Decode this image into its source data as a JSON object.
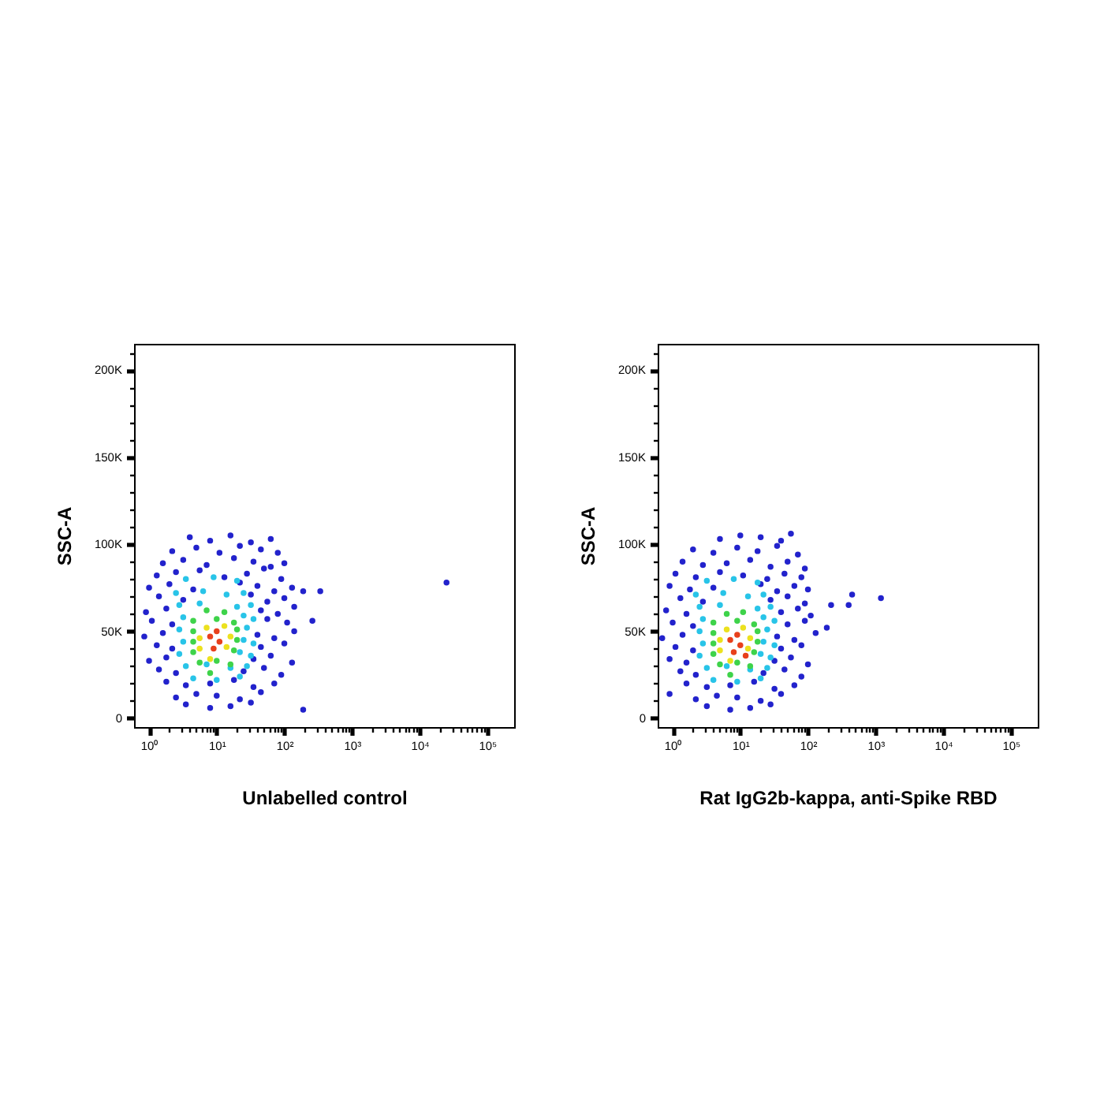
{
  "chart_data": [
    {
      "type": "scatter",
      "xlabel": "Unlabelled control",
      "ylabel": "SSC-A",
      "log": "x",
      "marker": "circle",
      "xlim": [
        0.6,
        250000
      ],
      "ylim": [
        -5000,
        215000
      ],
      "xticks": [
        {
          "value": 1,
          "label": "10⁰"
        },
        {
          "value": 2,
          "label": null
        },
        {
          "value": 3,
          "label": null
        },
        {
          "value": 4,
          "label": null
        },
        {
          "value": 5,
          "label": null
        },
        {
          "value": 6,
          "label": null
        },
        {
          "value": 7,
          "label": null
        },
        {
          "value": 8,
          "label": null
        },
        {
          "value": 9,
          "label": null
        },
        {
          "value": 10,
          "label": "10¹"
        },
        {
          "value": 20,
          "label": null
        },
        {
          "value": 30,
          "label": null
        },
        {
          "value": 40,
          "label": null
        },
        {
          "value": 50,
          "label": null
        },
        {
          "value": 60,
          "label": null
        },
        {
          "value": 70,
          "label": null
        },
        {
          "value": 80,
          "label": null
        },
        {
          "value": 90,
          "label": null
        },
        {
          "value": 100,
          "label": "10²"
        },
        {
          "value": 200,
          "label": null
        },
        {
          "value": 300,
          "label": null
        },
        {
          "value": 400,
          "label": null
        },
        {
          "value": 500,
          "label": null
        },
        {
          "value": 600,
          "label": null
        },
        {
          "value": 700,
          "label": null
        },
        {
          "value": 800,
          "label": null
        },
        {
          "value": 900,
          "label": null
        },
        {
          "value": 1000,
          "label": "10³"
        },
        {
          "value": 2000,
          "label": null
        },
        {
          "value": 3000,
          "label": null
        },
        {
          "value": 4000,
          "label": null
        },
        {
          "value": 5000,
          "label": null
        },
        {
          "value": 6000,
          "label": null
        },
        {
          "value": 7000,
          "label": null
        },
        {
          "value": 8000,
          "label": null
        },
        {
          "value": 9000,
          "label": null
        },
        {
          "value": 10000,
          "label": "10⁴"
        },
        {
          "value": 20000,
          "label": null
        },
        {
          "value": 30000,
          "label": null
        },
        {
          "value": 40000,
          "label": null
        },
        {
          "value": 50000,
          "label": null
        },
        {
          "value": 60000,
          "label": null
        },
        {
          "value": 70000,
          "label": null
        },
        {
          "value": 80000,
          "label": null
        },
        {
          "value": 90000,
          "label": null
        },
        {
          "value": 100000,
          "label": "10⁵"
        }
      ],
      "yticks": [
        0,
        {
          "value": 10000,
          "label": null
        },
        {
          "value": 20000,
          "label": null
        },
        {
          "value": 30000,
          "label": null
        },
        {
          "value": 40000,
          "label": null
        },
        {
          "value": 50000,
          "label": "50K"
        },
        {
          "value": 60000,
          "label": null
        },
        {
          "value": 70000,
          "label": null
        },
        {
          "value": 80000,
          "label": null
        },
        {
          "value": 90000,
          "label": null
        },
        {
          "value": 100000,
          "label": "100K"
        },
        {
          "value": 110000,
          "label": null
        },
        {
          "value": 120000,
          "label": null
        },
        {
          "value": 130000,
          "label": null
        },
        {
          "value": 140000,
          "label": null
        },
        {
          "value": 150000,
          "label": "150K"
        },
        {
          "value": 160000,
          "label": null
        },
        {
          "value": 170000,
          "label": null
        },
        {
          "value": 180000,
          "label": null
        },
        {
          "value": 190000,
          "label": null
        },
        {
          "value": 200000,
          "label": "200K"
        },
        {
          "value": 210000,
          "label": null
        }
      ],
      "series": [
        {
          "color": "#2222cc",
          "x": [
            4,
            8,
            16,
            32,
            63,
            2.2,
            5,
            11,
            22,
            45,
            80,
            1.6,
            3.2,
            7.1,
            18,
            35,
            63,
            100,
            1.3,
            2.5,
            5.6,
            13,
            28,
            50,
            90,
            1,
            2,
            4.5,
            22,
            40,
            71,
            130,
            1.4,
            3.2,
            32,
            56,
            100,
            0.9,
            1.8,
            45,
            80,
            140,
            1.1,
            2.2,
            56,
            110,
            0.85,
            1.6,
            40,
            71,
            140,
            1.3,
            2.2,
            45,
            100,
            1,
            1.8,
            35,
            63,
            130,
            1.4,
            2.5,
            25,
            50,
            90,
            1.8,
            3.5,
            8,
            18,
            35,
            71,
            2.5,
            5,
            10,
            22,
            45,
            3.5,
            8,
            16,
            32,
            190,
            340,
            260,
            25000,
            190
          ],
          "values": [
            104000,
            102000,
            105000,
            101000,
            103000,
            96000,
            98000,
            95000,
            99000,
            97000,
            95000,
            89000,
            91000,
            88000,
            92000,
            90000,
            87000,
            89000,
            82000,
            84000,
            85000,
            81000,
            83000,
            86000,
            80000,
            75000,
            77000,
            74000,
            78000,
            76000,
            73000,
            75000,
            70000,
            68000,
            71000,
            67000,
            69000,
            61000,
            63000,
            62000,
            60000,
            64000,
            56000,
            54000,
            57000,
            55000,
            47000,
            49000,
            48000,
            46000,
            50000,
            42000,
            40000,
            41000,
            43000,
            33000,
            35000,
            34000,
            36000,
            32000,
            28000,
            26000,
            27000,
            29000,
            25000,
            21000,
            19000,
            20000,
            22000,
            18000,
            20000,
            12000,
            14000,
            13000,
            11000,
            15000,
            8000,
            6000,
            7000,
            9000,
            5000,
            73000,
            56000,
            78000,
            73000
          ]
        },
        {
          "color": "#28c4e8",
          "x": [
            3.5,
            9,
            20,
            2.5,
            6.3,
            14,
            25,
            2.8,
            5.6,
            20,
            32,
            3.2,
            25,
            35,
            2.8,
            28,
            3.2,
            25,
            35,
            2.8,
            22,
            32,
            3.5,
            7.1,
            16,
            28,
            4.5,
            10,
            22
          ],
          "values": [
            80000,
            81000,
            79000,
            72000,
            73000,
            71000,
            72000,
            65000,
            66000,
            64000,
            65000,
            58000,
            59000,
            57000,
            51000,
            52000,
            44000,
            45000,
            43000,
            37000,
            38000,
            36000,
            30000,
            31000,
            29000,
            30000,
            23000,
            22000,
            24000
          ]
        },
        {
          "color": "#3ed34a",
          "x": [
            7.1,
            13,
            4.5,
            10,
            18,
            4.5,
            20,
            4.5,
            20,
            4.5,
            18,
            5.6,
            10,
            16,
            8
          ],
          "values": [
            62000,
            61000,
            56000,
            57000,
            55000,
            50000,
            51000,
            44000,
            45000,
            38000,
            39000,
            32000,
            33000,
            31000,
            26000
          ]
        },
        {
          "color": "#ece11e",
          "x": [
            7.1,
            13,
            5.6,
            16,
            5.6,
            14,
            8
          ],
          "values": [
            52000,
            53000,
            46000,
            47000,
            40000,
            41000,
            34000
          ]
        },
        {
          "color": "#e8401c",
          "x": [
            8,
            11,
            9,
            10
          ],
          "values": [
            47000,
            44000,
            40000,
            50000
          ]
        }
      ]
    },
    {
      "type": "scatter",
      "xlabel": "Rat IgG2b-kappa, anti-Spike RBD",
      "ylabel": "SSC-A",
      "log": "x",
      "marker": "circle",
      "xlim": [
        0.6,
        250000
      ],
      "ylim": [
        -5000,
        215000
      ],
      "xticks": [
        {
          "value": 1,
          "label": "10⁰"
        },
        {
          "value": 2,
          "label": null
        },
        {
          "value": 3,
          "label": null
        },
        {
          "value": 4,
          "label": null
        },
        {
          "value": 5,
          "label": null
        },
        {
          "value": 6,
          "label": null
        },
        {
          "value": 7,
          "label": null
        },
        {
          "value": 8,
          "label": null
        },
        {
          "value": 9,
          "label": null
        },
        {
          "value": 10,
          "label": "10¹"
        },
        {
          "value": 20,
          "label": null
        },
        {
          "value": 30,
          "label": null
        },
        {
          "value": 40,
          "label": null
        },
        {
          "value": 50,
          "label": null
        },
        {
          "value": 60,
          "label": null
        },
        {
          "value": 70,
          "label": null
        },
        {
          "value": 80,
          "label": null
        },
        {
          "value": 90,
          "label": null
        },
        {
          "value": 100,
          "label": "10²"
        },
        {
          "value": 200,
          "label": null
        },
        {
          "value": 300,
          "label": null
        },
        {
          "value": 400,
          "label": null
        },
        {
          "value": 500,
          "label": null
        },
        {
          "value": 600,
          "label": null
        },
        {
          "value": 700,
          "label": null
        },
        {
          "value": 800,
          "label": null
        },
        {
          "value": 900,
          "label": null
        },
        {
          "value": 1000,
          "label": "10³"
        },
        {
          "value": 2000,
          "label": null
        },
        {
          "value": 3000,
          "label": null
        },
        {
          "value": 4000,
          "label": null
        },
        {
          "value": 5000,
          "label": null
        },
        {
          "value": 6000,
          "label": null
        },
        {
          "value": 7000,
          "label": null
        },
        {
          "value": 8000,
          "label": null
        },
        {
          "value": 9000,
          "label": null
        },
        {
          "value": 10000,
          "label": "10⁴"
        },
        {
          "value": 20000,
          "label": null
        },
        {
          "value": 30000,
          "label": null
        },
        {
          "value": 40000,
          "label": null
        },
        {
          "value": 50000,
          "label": null
        },
        {
          "value": 60000,
          "label": null
        },
        {
          "value": 70000,
          "label": null
        },
        {
          "value": 80000,
          "label": null
        },
        {
          "value": 90000,
          "label": null
        },
        {
          "value": 100000,
          "label": "10⁵"
        }
      ],
      "yticks": [
        0,
        {
          "value": 10000,
          "label": null
        },
        {
          "value": 20000,
          "label": null
        },
        {
          "value": 30000,
          "label": null
        },
        {
          "value": 40000,
          "label": null
        },
        {
          "value": 50000,
          "label": "50K"
        },
        {
          "value": 60000,
          "label": null
        },
        {
          "value": 70000,
          "label": null
        },
        {
          "value": 80000,
          "label": null
        },
        {
          "value": 90000,
          "label": null
        },
        {
          "value": 100000,
          "label": "100K"
        },
        {
          "value": 110000,
          "label": null
        },
        {
          "value": 120000,
          "label": null
        },
        {
          "value": 130000,
          "label": null
        },
        {
          "value": 140000,
          "label": null
        },
        {
          "value": 150000,
          "label": "150K"
        },
        {
          "value": 160000,
          "label": null
        },
        {
          "value": 170000,
          "label": null
        },
        {
          "value": 180000,
          "label": null
        },
        {
          "value": 190000,
          "label": null
        },
        {
          "value": 200000,
          "label": "200K"
        },
        {
          "value": 210000,
          "label": null
        }
      ],
      "series": [
        {
          "color": "#2222cc",
          "x": [
            5,
            10,
            20,
            40,
            56,
            2,
            4,
            9,
            18,
            35,
            71,
            1.4,
            2.8,
            6.3,
            14,
            28,
            50,
            90,
            1.1,
            2.2,
            5,
            11,
            25,
            45,
            80,
            0.9,
            1.8,
            4,
            20,
            35,
            63,
            100,
            1.3,
            2.8,
            28,
            50,
            90,
            0.8,
            1.6,
            40,
            71,
            110,
            1,
            2,
            50,
            90,
            0.7,
            1.4,
            35,
            63,
            130,
            1.1,
            2,
            40,
            80,
            0.9,
            1.6,
            32,
            56,
            100,
            1.3,
            2.2,
            22,
            45,
            80,
            1.6,
            3.2,
            7.1,
            16,
            32,
            63,
            2.2,
            4.5,
            9,
            20,
            40,
            3.2,
            7.1,
            14,
            28,
            1200,
            450,
            400,
            220,
            190,
            0.9
          ],
          "values": [
            103000,
            105000,
            104000,
            102000,
            106000,
            97000,
            95000,
            98000,
            96000,
            99000,
            94000,
            90000,
            88000,
            89000,
            91000,
            87000,
            90000,
            86000,
            83000,
            81000,
            84000,
            82000,
            80000,
            83000,
            81000,
            76000,
            74000,
            75000,
            77000,
            73000,
            76000,
            74000,
            69000,
            67000,
            68000,
            70000,
            66000,
            62000,
            60000,
            61000,
            63000,
            59000,
            55000,
            53000,
            54000,
            56000,
            46000,
            48000,
            47000,
            45000,
            49000,
            41000,
            39000,
            40000,
            42000,
            34000,
            32000,
            33000,
            35000,
            31000,
            27000,
            25000,
            26000,
            28000,
            24000,
            20000,
            18000,
            19000,
            21000,
            17000,
            19000,
            11000,
            13000,
            12000,
            10000,
            14000,
            7000,
            5000,
            6000,
            8000,
            69000,
            71000,
            65000,
            65000,
            52000,
            14000
          ]
        },
        {
          "color": "#28c4e8",
          "x": [
            3.2,
            8,
            18,
            2.2,
            5.6,
            13,
            22,
            2.5,
            5,
            18,
            28,
            2.8,
            22,
            32,
            2.5,
            25,
            2.8,
            22,
            32,
            2.5,
            20,
            28,
            3.2,
            6.3,
            14,
            25,
            4,
            9,
            20
          ],
          "values": [
            79000,
            80000,
            78000,
            71000,
            72000,
            70000,
            71000,
            64000,
            65000,
            63000,
            64000,
            57000,
            58000,
            56000,
            50000,
            51000,
            43000,
            44000,
            42000,
            36000,
            37000,
            35000,
            29000,
            30000,
            28000,
            29000,
            22000,
            21000,
            23000
          ]
        },
        {
          "color": "#3ed34a",
          "x": [
            6.3,
            11,
            4,
            9,
            16,
            4,
            18,
            4,
            18,
            4,
            16,
            5,
            9,
            14,
            7.1
          ],
          "values": [
            60000,
            61000,
            55000,
            56000,
            54000,
            49000,
            50000,
            43000,
            44000,
            37000,
            38000,
            31000,
            32000,
            30000,
            25000
          ]
        },
        {
          "color": "#ece11e",
          "x": [
            6.3,
            11,
            5,
            14,
            5,
            13,
            7.1
          ],
          "values": [
            51000,
            52000,
            45000,
            46000,
            39000,
            40000,
            33000
          ]
        },
        {
          "color": "#e8401c",
          "x": [
            7.1,
            10,
            8,
            9,
            12
          ],
          "values": [
            45000,
            42000,
            38000,
            48000,
            36000
          ]
        }
      ]
    }
  ]
}
